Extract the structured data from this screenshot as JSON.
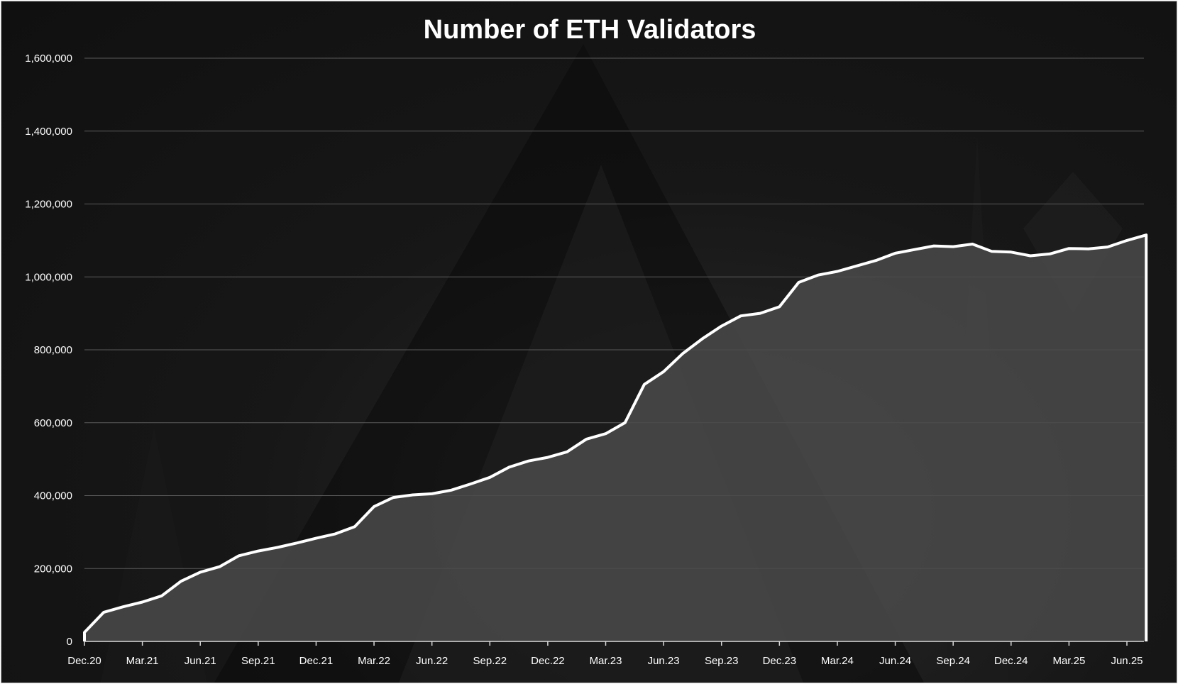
{
  "chart_data": {
    "type": "area",
    "title": "Number of ETH Validators",
    "xlabel": "",
    "ylabel": "",
    "ylim": [
      0,
      1600000
    ],
    "grid": true,
    "legend": "none",
    "y_ticks": [
      "0",
      "200,000",
      "400,000",
      "600,000",
      "800,000",
      "1,000,000",
      "1,200,000",
      "1,400,000",
      "1,600,000"
    ],
    "x_ticks": [
      "Dec.20",
      "Mar.21",
      "Jun.21",
      "Sep.21",
      "Dec.21",
      "Mar.22",
      "Jun.22",
      "Sep.22",
      "Dec.22",
      "Mar.23",
      "Jun.23",
      "Sep.23",
      "Dec.23",
      "Mar.24",
      "Jun.24",
      "Sep.24",
      "Dec.24",
      "Mar.25",
      "Jun.25"
    ],
    "series": [
      {
        "color": "#ffffff",
        "fill": "#4a4a4a",
        "x": [
          "Dec.20",
          "Jan.21",
          "Feb.21",
          "Mar.21",
          "Apr.21",
          "May.21",
          "Jun.21",
          "Jul.21",
          "Aug.21",
          "Sep.21",
          "Oct.21",
          "Nov.21",
          "Dec.21",
          "Jan.22",
          "Feb.22",
          "Mar.22",
          "Apr.22",
          "May.22",
          "Jun.22",
          "Jul.22",
          "Aug.22",
          "Sep.22",
          "Oct.22",
          "Nov.22",
          "Dec.22",
          "Jan.23",
          "Feb.23",
          "Mar.23",
          "Apr.23",
          "May.23",
          "Jun.23",
          "Jul.23",
          "Aug.23",
          "Sep.23",
          "Oct.23",
          "Nov.23",
          "Dec.23",
          "Jan.24",
          "Feb.24",
          "Mar.24",
          "Apr.24",
          "May.24",
          "Jun.24",
          "Jul.24",
          "Aug.24",
          "Sep.24",
          "Oct.24",
          "Nov.24",
          "Dec.24",
          "Jan.25",
          "Feb.25",
          "Mar.25",
          "Apr.25",
          "May.25",
          "Jun.25",
          "Jul.25"
        ],
        "values": [
          25000,
          80000,
          95000,
          108000,
          125000,
          165000,
          190000,
          205000,
          235000,
          248000,
          258000,
          270000,
          283000,
          295000,
          315000,
          370000,
          395000,
          402000,
          405000,
          415000,
          432000,
          450000,
          478000,
          495000,
          505000,
          520000,
          555000,
          570000,
          600000,
          705000,
          740000,
          790000,
          830000,
          865000,
          893000,
          900000,
          918000,
          985000,
          1005000,
          1015000,
          1030000,
          1045000,
          1065000,
          1075000,
          1085000,
          1083000,
          1090000,
          1070000,
          1068000,
          1058000,
          1063000,
          1078000,
          1077000,
          1082000,
          1100000,
          1115000
        ]
      }
    ]
  }
}
